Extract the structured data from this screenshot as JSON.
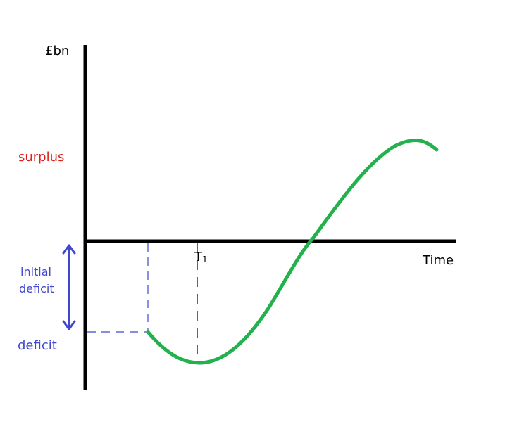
{
  "labels": {
    "y_axis": "£bn",
    "x_axis": "Time",
    "surplus": "surplus",
    "deficit": "deficit",
    "initial_deficit_line1": "initial",
    "initial_deficit_line2": "deficit",
    "t1_main": "T",
    "t1_sub": "1"
  },
  "colors": {
    "axis": "#000000",
    "curve": "#22b14c",
    "surplus_text": "#e0201b",
    "deficit_text": "#3f48cc",
    "guide_blue": "#3f48cc",
    "guide_black": "#000000"
  }
}
